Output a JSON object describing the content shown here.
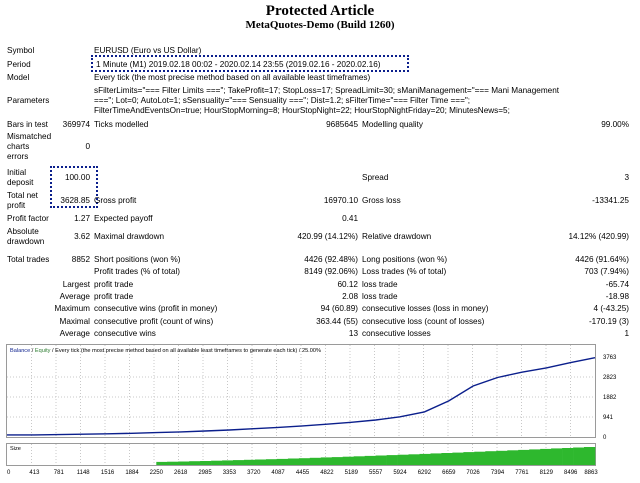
{
  "header": {
    "title": "Protected Article",
    "subtitle": "MetaQuotes-Demo (Build 1260)"
  },
  "settings": {
    "symbol_label": "Symbol",
    "symbol_value": "EURUSD (Euro vs US Dollar)",
    "period_label": "Period",
    "period_value": "1 Minute (M1) 2019.02.18 00:02 - 2020.02.14 23:55 (2019.02.16 - 2020.02.16)",
    "model_label": "Model",
    "model_value": "Every tick (the most precise method based on all available least timeframes)",
    "parameters_label": "Parameters",
    "parameters_line1": "sFilterLimits=\"=== Filter Limits ===\"; TakeProfit=17; StopLoss=17; SpreadLimit=30; sManiManagement=\"=== Mani Management",
    "parameters_line2": "===\"; Lot=0; AutoLot=1; sSensuality=\"=== Sensuality ===\"; Dist=1.2; sFilterTime=\"=== Filter Time ===\";",
    "parameters_line3": "FilterTimeAndEventsOn=true; HourStopMorning=8; HourStopNight=22; HourStopNightFriday=20; MinutesNews=5;"
  },
  "stats": {
    "bars_label": "Bars in test",
    "bars_value": "369974",
    "ticks_label": "Ticks modelled",
    "ticks_value": "9685645",
    "quality_label": "Modelling quality",
    "quality_value": "99.00%",
    "mismatch_label1": "Mismatched",
    "mismatch_label2": "charts",
    "mismatch_label3": "errors",
    "mismatch_value": "0",
    "deposit_label1": "Initial",
    "deposit_label2": "deposit",
    "deposit_value": "100.00",
    "spread_label": "Spread",
    "spread_value": "3",
    "netprofit_label1": "Total net",
    "netprofit_label2": "profit",
    "netprofit_value": "3628.85",
    "grossprofit_label": "Gross profit",
    "grossprofit_value": "16970.10",
    "grossloss_label": "Gross loss",
    "grossloss_value": "-13341.25",
    "pf_label": "Profit factor",
    "pf_value": "1.27",
    "payoff_label": "Expected payoff",
    "payoff_value": "0.41",
    "absdd_label1": "Absolute",
    "absdd_label2": "drawdown",
    "absdd_value": "3.62",
    "maxdd_label": "Maximal drawdown",
    "maxdd_value": "420.99 (14.12%)",
    "reldd_label": "Relative drawdown",
    "reldd_value": "14.12% (420.99)",
    "trades_label": "Total trades",
    "trades_value": "8852",
    "short_label": "Short positions (won %)",
    "short_value": "4426 (92.48%)",
    "long_label": "Long positions (won %)",
    "long_value": "4426 (91.64%)",
    "profit_trades_label": "Profit trades (% of total)",
    "profit_trades_value": "8149 (92.06%)",
    "loss_trades_label": "Loss trades (% of total)",
    "loss_trades_value": "703 (7.94%)",
    "largest_label": "Largest",
    "largest_profit_label": "profit trade",
    "largest_profit_value": "60.12",
    "largest_loss_label": "loss trade",
    "largest_loss_value": "-65.74",
    "average_label": "Average",
    "average_profit_label": "profit trade",
    "average_profit_value": "2.08",
    "average_loss_label": "loss trade",
    "average_loss_value": "-18.98",
    "maximum_label": "Maximum",
    "max_cw_label": "consecutive wins (profit in money)",
    "max_cw_value": "94 (60.89)",
    "max_cl_label": "consecutive losses (loss in money)",
    "max_cl_value": "4 (-43.25)",
    "maximal_label": "Maximal",
    "mxl_cp_label": "consecutive profit (count of wins)",
    "mxl_cp_value": "363.44 (55)",
    "mxl_cl_label": "consecutive loss (count of losses)",
    "mxl_cl_value": "-170.19 (3)",
    "avg2_label": "Average",
    "avg_cw_label": "consecutive wins",
    "avg_cw_value": "13",
    "avg_cl_label": "consecutive losses",
    "avg_cl_value": "1"
  },
  "chart": {
    "legend_balance": "Balance",
    "legend_sep1": " / ",
    "legend_equity": "Equity",
    "legend_rest": " / Every tick (the most precise method based on all available least timeframes to generate each tick) / 25.00%",
    "size_label": "Size",
    "balance_color": "#0b1f8c",
    "equity_color": "#2e7d32",
    "size_color": "#2eb82e"
  },
  "chart_data": {
    "type": "line",
    "series": [
      {
        "name": "Balance",
        "x": [
          0,
          413,
          781,
          1148,
          1516,
          1884,
          2250,
          2618,
          2985,
          3353,
          3720,
          4087,
          4455,
          4822,
          5189,
          5557,
          5924,
          6292,
          6659,
          7026,
          7394,
          7761,
          8129,
          8496,
          8863
        ],
        "values": [
          100,
          100,
          115,
          130,
          150,
          175,
          205,
          240,
          280,
          330,
          390,
          450,
          520,
          600,
          690,
          800,
          950,
          1180,
          1700,
          2400,
          2800,
          3050,
          3250,
          3500,
          3729
        ]
      }
    ],
    "y_ticks": [
      "3763",
      "2823",
      "1882",
      "941",
      "0"
    ],
    "x_ticks": [
      "0",
      "413",
      "781",
      "1148",
      "1516",
      "1884",
      "2250",
      "2618",
      "2985",
      "3353",
      "3720",
      "4087",
      "4455",
      "4822",
      "5189",
      "5557",
      "5924",
      "6292",
      "6659",
      "7026",
      "7394",
      "7761",
      "8129",
      "8496",
      "8863"
    ],
    "ylim": [
      0,
      3763
    ],
    "xlim": [
      0,
      8863
    ]
  }
}
